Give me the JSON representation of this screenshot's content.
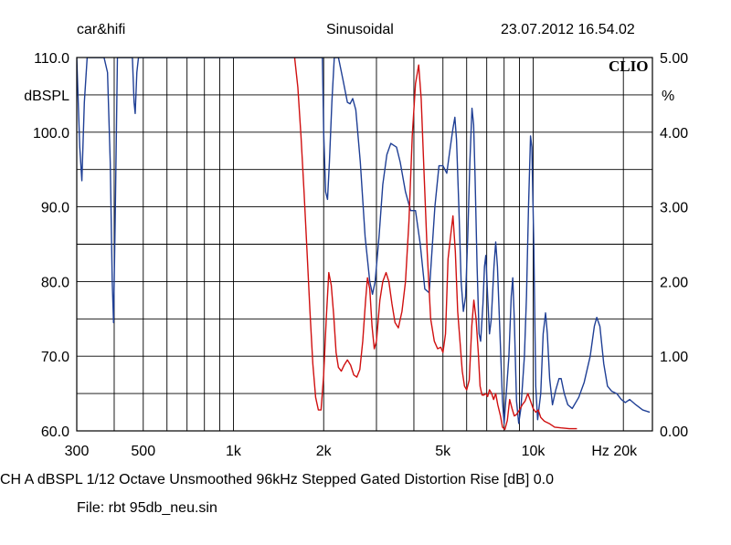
{
  "header": {
    "brand": "car&hifi",
    "mode": "Sinusoidal",
    "datetime": "23.07.2012 16.54.02"
  },
  "chart_data": {
    "type": "line",
    "logo": "CLIO",
    "x_scale": "log",
    "xlim": [
      300,
      25000
    ],
    "ylim": [
      60,
      110
    ],
    "ylim_right": [
      0,
      5
    ],
    "ylabel": "dBSPL",
    "ylabel_right": "%",
    "x_ticks": [
      {
        "value": 300,
        "label": "300"
      },
      {
        "value": 500,
        "label": "500"
      },
      {
        "value": 1000,
        "label": "1k"
      },
      {
        "value": 2000,
        "label": "2k"
      },
      {
        "value": 5000,
        "label": "5k"
      },
      {
        "value": 10000,
        "label": "10k"
      },
      {
        "value": 20000,
        "label": "Hz 20k"
      }
    ],
    "x_grid": [
      300,
      400,
      500,
      600,
      700,
      800,
      900,
      1000,
      2000,
      3000,
      4000,
      5000,
      6000,
      7000,
      8000,
      9000,
      10000,
      20000
    ],
    "y_ticks_left": [
      {
        "value": 110,
        "label": "110.0"
      },
      {
        "value": 100,
        "label": "100.0"
      },
      {
        "value": 90,
        "label": "90.0"
      },
      {
        "value": 80,
        "label": "80.0"
      },
      {
        "value": 70,
        "label": "70.0"
      },
      {
        "value": 60,
        "label": "60.0"
      }
    ],
    "y_ticks_right": [
      {
        "value": 5,
        "label": "5.00"
      },
      {
        "value": 4,
        "label": "4.00"
      },
      {
        "value": 3,
        "label": "3.00"
      },
      {
        "value": 2,
        "label": "2.00"
      },
      {
        "value": 1,
        "label": "1.00"
      },
      {
        "value": 0,
        "label": "0.00"
      }
    ],
    "y_grid": [
      60,
      65,
      70,
      75,
      80,
      85,
      90,
      95,
      100,
      105,
      110
    ],
    "series": [
      {
        "axis": "left",
        "color": "#1f3f95",
        "points": [
          [
            300,
            110
          ],
          [
            307,
            98
          ],
          [
            312,
            93.5
          ],
          [
            318,
            104
          ],
          [
            325,
            110
          ],
          [
            370,
            110
          ],
          [
            380,
            108
          ],
          [
            388,
            96
          ],
          [
            394,
            80
          ],
          [
            398,
            74.5
          ],
          [
            403,
            88
          ],
          [
            410,
            110
          ],
          [
            460,
            110
          ],
          [
            466,
            104
          ],
          [
            470,
            102.5
          ],
          [
            476,
            108
          ],
          [
            482,
            110
          ],
          [
            1980,
            110
          ],
          [
            2000,
            100
          ],
          [
            2030,
            92
          ],
          [
            2060,
            91
          ],
          [
            2090,
            96
          ],
          [
            2130,
            104
          ],
          [
            2170,
            110
          ],
          [
            2240,
            110
          ],
          [
            2320,
            107
          ],
          [
            2400,
            104
          ],
          [
            2450,
            103.8
          ],
          [
            2500,
            104.5
          ],
          [
            2560,
            103
          ],
          [
            2650,
            96
          ],
          [
            2750,
            86
          ],
          [
            2850,
            80
          ],
          [
            2910,
            78.3
          ],
          [
            2970,
            80
          ],
          [
            3060,
            86
          ],
          [
            3150,
            93
          ],
          [
            3250,
            97
          ],
          [
            3350,
            98.5
          ],
          [
            3500,
            98
          ],
          [
            3600,
            96
          ],
          [
            3750,
            92
          ],
          [
            3900,
            89.5
          ],
          [
            4050,
            89.5
          ],
          [
            4200,
            85
          ],
          [
            4350,
            79
          ],
          [
            4500,
            78.5
          ],
          [
            4700,
            90
          ],
          [
            4850,
            95.5
          ],
          [
            5000,
            95.5
          ],
          [
            5150,
            94.5
          ],
          [
            5250,
            97
          ],
          [
            5400,
            100.5
          ],
          [
            5480,
            102
          ],
          [
            5550,
            99
          ],
          [
            5650,
            90
          ],
          [
            5750,
            80
          ],
          [
            5850,
            76
          ],
          [
            5950,
            78
          ],
          [
            6050,
            86
          ],
          [
            6150,
            96
          ],
          [
            6250,
            103.2
          ],
          [
            6330,
            101
          ],
          [
            6400,
            94
          ],
          [
            6500,
            82
          ],
          [
            6600,
            73
          ],
          [
            6680,
            72
          ],
          [
            6800,
            77
          ],
          [
            6880,
            82
          ],
          [
            6950,
            83.5
          ],
          [
            7050,
            78
          ],
          [
            7150,
            73
          ],
          [
            7250,
            75
          ],
          [
            7400,
            82
          ],
          [
            7500,
            85.3
          ],
          [
            7600,
            82
          ],
          [
            7750,
            73
          ],
          [
            7900,
            64
          ],
          [
            8000,
            61
          ],
          [
            8100,
            64
          ],
          [
            8300,
            70
          ],
          [
            8450,
            78
          ],
          [
            8550,
            80.5
          ],
          [
            8650,
            75
          ],
          [
            8800,
            64
          ],
          [
            8950,
            61
          ],
          [
            9100,
            63
          ],
          [
            9350,
            70
          ],
          [
            9500,
            78
          ],
          [
            9650,
            90
          ],
          [
            9800,
            99.5
          ],
          [
            9900,
            98
          ],
          [
            10050,
            85
          ],
          [
            10200,
            66
          ],
          [
            10350,
            61.5
          ],
          [
            10600,
            65
          ],
          [
            10800,
            73
          ],
          [
            11000,
            75.8
          ],
          [
            11150,
            73
          ],
          [
            11350,
            67
          ],
          [
            11600,
            63.5
          ],
          [
            11900,
            65.5
          ],
          [
            12200,
            67
          ],
          [
            12400,
            67
          ],
          [
            12700,
            65
          ],
          [
            13050,
            63.5
          ],
          [
            13500,
            63
          ],
          [
            14200,
            64.5
          ],
          [
            14800,
            66.5
          ],
          [
            15500,
            70
          ],
          [
            16000,
            74
          ],
          [
            16300,
            75.2
          ],
          [
            16700,
            74
          ],
          [
            17200,
            69
          ],
          [
            17700,
            66
          ],
          [
            18300,
            65.3
          ],
          [
            19000,
            65
          ],
          [
            19700,
            64.2
          ],
          [
            20300,
            63.8
          ],
          [
            21000,
            64.2
          ],
          [
            22000,
            63.5
          ],
          [
            23200,
            62.8
          ],
          [
            24500,
            62.5
          ]
        ]
      },
      {
        "axis": "right",
        "color": "#d01010",
        "points": [
          [
            1600,
            5.0
          ],
          [
            1640,
            4.6
          ],
          [
            1680,
            3.95
          ],
          [
            1720,
            3.2
          ],
          [
            1760,
            2.4
          ],
          [
            1800,
            1.6
          ],
          [
            1840,
            0.9
          ],
          [
            1880,
            0.45
          ],
          [
            1920,
            0.28
          ],
          [
            1960,
            0.28
          ],
          [
            2000,
            0.75
          ],
          [
            2040,
            1.5
          ],
          [
            2080,
            2.12
          ],
          [
            2120,
            1.95
          ],
          [
            2160,
            1.55
          ],
          [
            2200,
            1.05
          ],
          [
            2240,
            0.85
          ],
          [
            2290,
            0.8
          ],
          [
            2340,
            0.88
          ],
          [
            2400,
            0.95
          ],
          [
            2460,
            0.88
          ],
          [
            2520,
            0.75
          ],
          [
            2580,
            0.72
          ],
          [
            2640,
            0.82
          ],
          [
            2700,
            1.2
          ],
          [
            2760,
            1.75
          ],
          [
            2800,
            2.05
          ],
          [
            2850,
            1.9
          ],
          [
            2900,
            1.4
          ],
          [
            2950,
            1.1
          ],
          [
            3000,
            1.2
          ],
          [
            3080,
            1.75
          ],
          [
            3150,
            2.0
          ],
          [
            3230,
            2.12
          ],
          [
            3300,
            2.0
          ],
          [
            3380,
            1.7
          ],
          [
            3460,
            1.45
          ],
          [
            3550,
            1.38
          ],
          [
            3650,
            1.6
          ],
          [
            3750,
            2.0
          ],
          [
            3850,
            2.8
          ],
          [
            3950,
            3.95
          ],
          [
            4050,
            4.65
          ],
          [
            4150,
            4.9
          ],
          [
            4230,
            4.45
          ],
          [
            4320,
            3.5
          ],
          [
            4430,
            2.4
          ],
          [
            4550,
            1.5
          ],
          [
            4680,
            1.2
          ],
          [
            4800,
            1.1
          ],
          [
            4920,
            1.12
          ],
          [
            5000,
            1.05
          ],
          [
            5100,
            1.3
          ],
          [
            5200,
            2.3
          ],
          [
            5300,
            2.6
          ],
          [
            5400,
            2.88
          ],
          [
            5500,
            2.4
          ],
          [
            5600,
            1.6
          ],
          [
            5700,
            1.2
          ],
          [
            5800,
            0.8
          ],
          [
            5900,
            0.6
          ],
          [
            6000,
            0.55
          ],
          [
            6120,
            0.68
          ],
          [
            6240,
            1.4
          ],
          [
            6340,
            1.75
          ],
          [
            6450,
            1.5
          ],
          [
            6560,
            1.05
          ],
          [
            6650,
            0.6
          ],
          [
            6750,
            0.48
          ],
          [
            6850,
            0.48
          ],
          [
            6950,
            0.5
          ],
          [
            7050,
            0.46
          ],
          [
            7150,
            0.55
          ],
          [
            7270,
            0.5
          ],
          [
            7380,
            0.42
          ],
          [
            7500,
            0.5
          ],
          [
            7620,
            0.35
          ],
          [
            7780,
            0.2
          ],
          [
            7900,
            0.05
          ],
          [
            8050,
            0.02
          ],
          [
            8200,
            0.14
          ],
          [
            8350,
            0.42
          ],
          [
            8500,
            0.3
          ],
          [
            8650,
            0.2
          ],
          [
            8800,
            0.22
          ],
          [
            9000,
            0.28
          ],
          [
            9200,
            0.35
          ],
          [
            9400,
            0.4
          ],
          [
            9600,
            0.5
          ],
          [
            9800,
            0.4
          ],
          [
            10000,
            0.3
          ],
          [
            10200,
            0.25
          ],
          [
            10400,
            0.28
          ],
          [
            10600,
            0.18
          ],
          [
            10900,
            0.13
          ],
          [
            11300,
            0.1
          ],
          [
            11800,
            0.05
          ],
          [
            12400,
            0.04
          ],
          [
            13200,
            0.03
          ],
          [
            14000,
            0.03
          ]
        ]
      }
    ]
  },
  "footer": {
    "info": "CH A   dBSPL    1/12 Octave   Unsmoothed   96kHz   Stepped    Gated    Distortion Rise [dB] 0.0",
    "file": "File: rbt 95db_neu.sin"
  }
}
